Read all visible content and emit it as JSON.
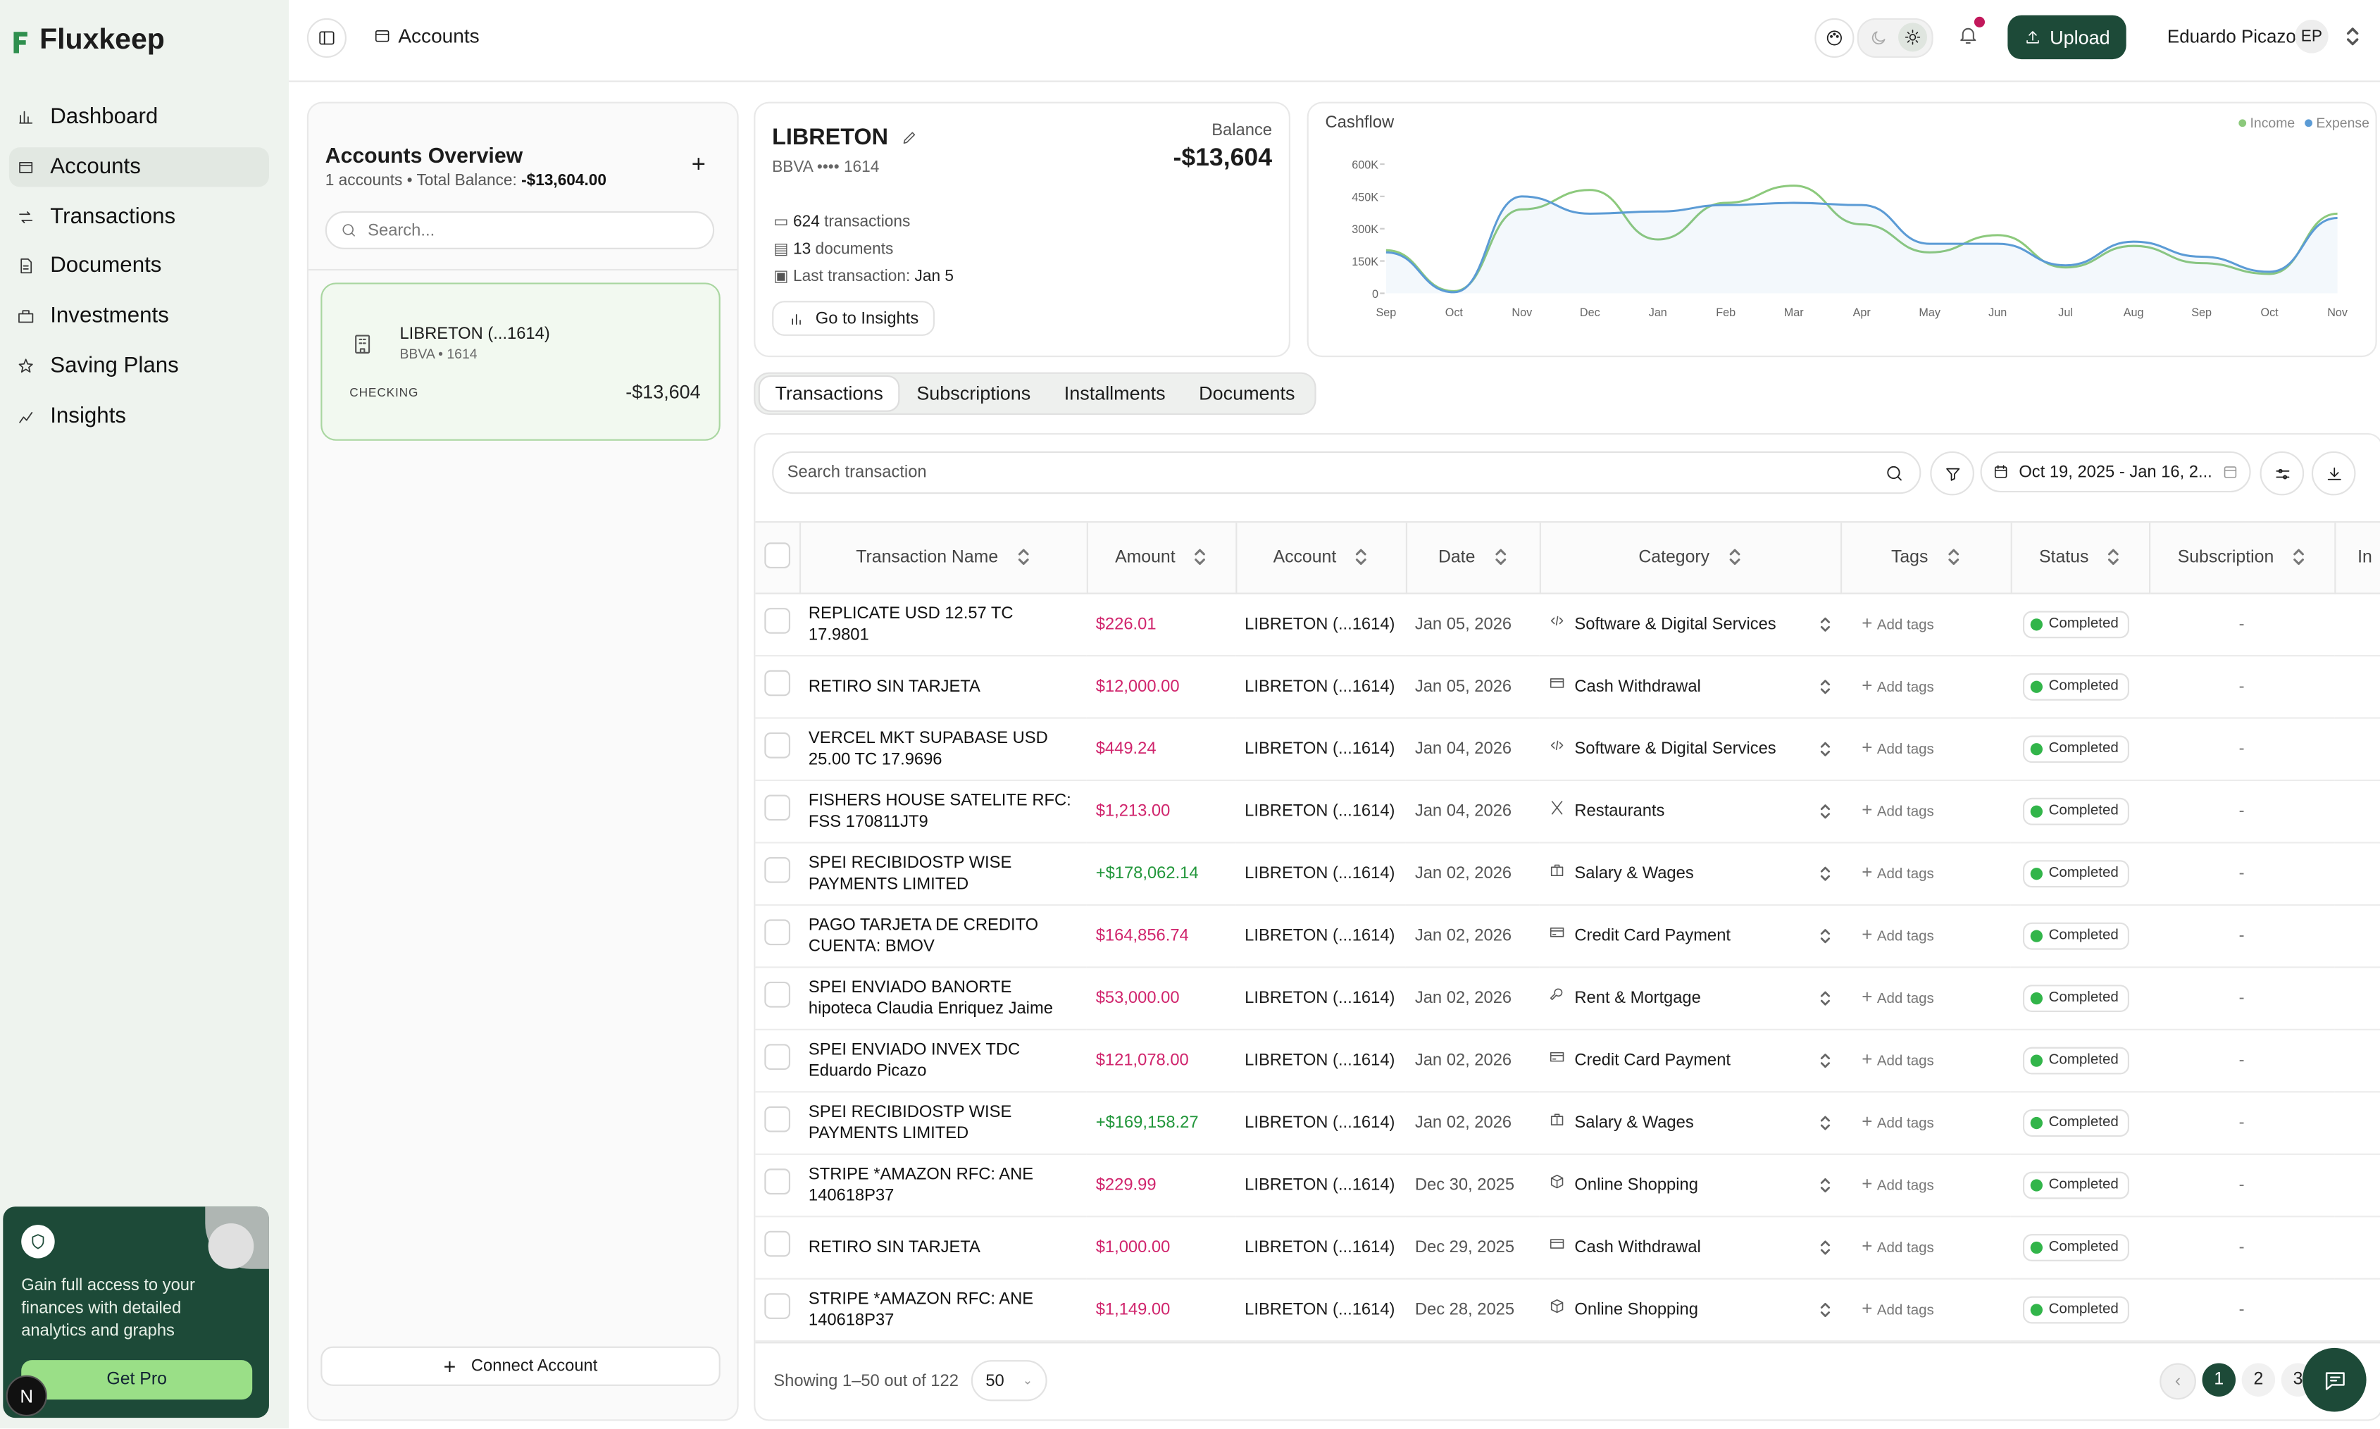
{
  "app": {
    "logo": "Fluxkeep"
  },
  "sidebar": {
    "nav": [
      "Dashboard",
      "Accounts",
      "Transactions",
      "Documents",
      "Investments",
      "Saving Plans",
      "Insights"
    ],
    "promo": {
      "text": "Gain full access to your finances with detailed analytics and graphs",
      "button": "Get Pro"
    },
    "dev_badge": "N"
  },
  "topbar": {
    "breadcrumb": "Accounts",
    "upload": "Upload",
    "user": "Eduardo Picazo",
    "initials": "EP"
  },
  "accounts_panel": {
    "title": "Accounts Overview",
    "summary": "1 accounts • Total Balance:",
    "total": "-$13,604.00",
    "search_placeholder": "Search...",
    "account": {
      "name": "LIBRETON (...1614)",
      "sub": "BBVA • 1614",
      "type": "CHECKING",
      "balance": "-$13,604"
    },
    "connect": "Connect Account"
  },
  "account_card": {
    "name": "LIBRETON",
    "sub": "BBVA •••• 1614",
    "balance_label": "Balance",
    "balance": "-$13,604",
    "transactions_count": "624",
    "transactions_label": "transactions",
    "documents_count": "13",
    "documents_label": "documents",
    "last_label": "Last transaction:",
    "last": "Jan 5",
    "insights": "Go to Insights"
  },
  "chart_data": {
    "type": "line",
    "title": "Cashflow",
    "categories": [
      "Sep",
      "Oct",
      "Nov",
      "Dec",
      "Jan",
      "Feb",
      "Mar",
      "Apr",
      "May",
      "Jun",
      "Jul",
      "Aug",
      "Sep",
      "Oct",
      "Nov"
    ],
    "series": [
      {
        "name": "Income",
        "color": "#8cc97c",
        "values": [
          200000,
          10000,
          390000,
          480000,
          250000,
          420000,
          500000,
          320000,
          190000,
          270000,
          120000,
          220000,
          140000,
          90000,
          370000
        ]
      },
      {
        "name": "Expense",
        "color": "#5b9bd5",
        "values": [
          190000,
          5000,
          450000,
          370000,
          380000,
          410000,
          420000,
          410000,
          230000,
          230000,
          130000,
          240000,
          170000,
          100000,
          350000
        ]
      }
    ],
    "ylim": [
      0,
      600000
    ],
    "yticks": [
      0,
      {
        "value": 150000,
        "label": "150K"
      },
      {
        "value": 300000,
        "label": "300K"
      },
      {
        "value": 450000,
        "label": "450K"
      },
      {
        "value": 600000,
        "label": "600K"
      }
    ],
    "legend": "top-right"
  },
  "tabs": [
    "Transactions",
    "Subscriptions",
    "Installments",
    "Documents"
  ],
  "table": {
    "search_placeholder": "Search transaction",
    "date_range": "Oct 19, 2025 - Jan 16, 2...",
    "columns": [
      "Transaction Name",
      "Amount",
      "Account",
      "Date",
      "Category",
      "Tags",
      "Status",
      "Subscription",
      "In"
    ],
    "rows": [
      {
        "name": "REPLICATE USD 12.57 TC 17.9801",
        "amount": "$226.01",
        "account": "LIBRETON (...1614)",
        "date": "Jan 05, 2026",
        "category": "Software & Digital Services",
        "tags": "Add tags",
        "status": "Completed",
        "subscription": "-"
      },
      {
        "name": "RETIRO SIN TARJETA",
        "amount": "$12,000.00",
        "account": "LIBRETON (...1614)",
        "date": "Jan 05, 2026",
        "category": "Cash Withdrawal",
        "tags": "Add tags",
        "status": "Completed",
        "subscription": "-"
      },
      {
        "name": "VERCEL MKT SUPABASE USD 25.00 TC 17.9696",
        "amount": "$449.24",
        "account": "LIBRETON (...1614)",
        "date": "Jan 04, 2026",
        "category": "Software & Digital Services",
        "tags": "Add tags",
        "status": "Completed",
        "subscription": "-"
      },
      {
        "name": "FISHERS HOUSE SATELITE RFC: FSS 170811JT9",
        "amount": "$1,213.00",
        "account": "LIBRETON (...1614)",
        "date": "Jan 04, 2026",
        "category": "Restaurants",
        "tags": "Add tags",
        "status": "Completed",
        "subscription": "-"
      },
      {
        "name": "SPEI RECIBIDOSTP WISE PAYMENTS LIMITED",
        "amount": "+$178,062.14",
        "account": "LIBRETON (...1614)",
        "date": "Jan 02, 2026",
        "category": "Salary & Wages",
        "tags": "Add tags",
        "status": "Completed",
        "subscription": "-"
      },
      {
        "name": "PAGO TARJETA DE CREDITO CUENTA: BMOV",
        "amount": "$164,856.74",
        "account": "LIBRETON (...1614)",
        "date": "Jan 02, 2026",
        "category": "Credit Card Payment",
        "tags": "Add tags",
        "status": "Completed",
        "subscription": "-"
      },
      {
        "name": "SPEI ENVIADO BANORTE hipoteca Claudia Enriquez Jaime",
        "amount": "$53,000.00",
        "account": "LIBRETON (...1614)",
        "date": "Jan 02, 2026",
        "category": "Rent & Mortgage",
        "tags": "Add tags",
        "status": "Completed",
        "subscription": "-"
      },
      {
        "name": "SPEI ENVIADO INVEX TDC Eduardo Picazo",
        "amount": "$121,078.00",
        "account": "LIBRETON (...1614)",
        "date": "Jan 02, 2026",
        "category": "Credit Card Payment",
        "tags": "Add tags",
        "status": "Completed",
        "subscription": "-"
      },
      {
        "name": "SPEI RECIBIDOSTP WISE PAYMENTS LIMITED",
        "amount": "+$169,158.27",
        "account": "LIBRETON (...1614)",
        "date": "Jan 02, 2026",
        "category": "Salary & Wages",
        "tags": "Add tags",
        "status": "Completed",
        "subscription": "-"
      },
      {
        "name": "STRIPE *AMAZON RFC: ANE 140618P37",
        "amount": "$229.99",
        "account": "LIBRETON (...1614)",
        "date": "Dec 30, 2025",
        "category": "Online Shopping",
        "tags": "Add tags",
        "status": "Completed",
        "subscription": "-"
      },
      {
        "name": "RETIRO SIN TARJETA",
        "amount": "$1,000.00",
        "account": "LIBRETON (...1614)",
        "date": "Dec 29, 2025",
        "category": "Cash Withdrawal",
        "tags": "Add tags",
        "status": "Completed",
        "subscription": "-"
      },
      {
        "name": "STRIPE *AMAZON RFC: ANE 140618P37",
        "amount": "$1,149.00",
        "account": "LIBRETON (...1614)",
        "date": "Dec 28, 2025",
        "category": "Online Shopping",
        "tags": "Add tags",
        "status": "Completed",
        "subscription": "-"
      }
    ],
    "footer": "Showing 1–50 out of 122",
    "page_size": "50",
    "pages": [
      "1",
      "2",
      "3"
    ]
  }
}
